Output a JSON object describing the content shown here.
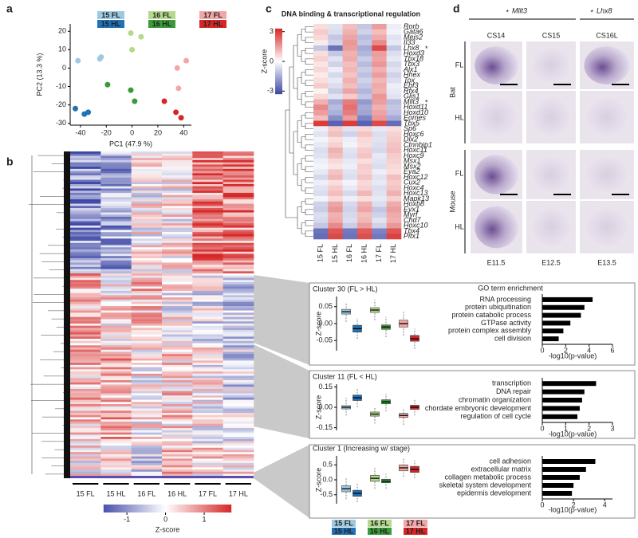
{
  "panel_labels": [
    "a",
    "b",
    "c",
    "d"
  ],
  "photo_panel": {
    "genes": [
      "Mllt3",
      "Lhx8"
    ],
    "stages": [
      "CS14",
      "CS15",
      "CS16L"
    ],
    "species": [
      "Bat",
      "Mouse"
    ],
    "limbs": [
      "FL",
      "HL"
    ],
    "mouse_stages": [
      "E11.5",
      "E12.5",
      "E13.5"
    ]
  },
  "chart_data": [
    {
      "type": "scatter",
      "x_label": "PC1 (47.9 %)",
      "y_label": "PC2 (13.3 %)",
      "xlim": [
        -48,
        46
      ],
      "ylim": [
        -31,
        24
      ],
      "xticks": [
        -40,
        -20,
        0,
        20,
        40
      ],
      "yticks": [
        -30,
        -20,
        -10,
        0,
        10,
        20
      ],
      "series": [
        {
          "name": "15 FL",
          "color": "#9ecae1",
          "x": [
            -42,
            -25,
            -24
          ],
          "values": [
            4,
            5,
            6
          ]
        },
        {
          "name": "15 HL",
          "color": "#2171b5",
          "x": [
            -44,
            -37,
            -34
          ],
          "values": [
            -22,
            -25,
            -24
          ]
        },
        {
          "name": "16 FL",
          "color": "#b5d98a",
          "x": [
            -1,
            7,
            0
          ],
          "values": [
            19,
            17,
            10
          ]
        },
        {
          "name": "16 HL",
          "color": "#3a9b3a",
          "x": [
            -19,
            -1,
            2
          ],
          "values": [
            -9,
            -12,
            -18
          ]
        },
        {
          "name": "17 FL",
          "color": "#f4a6a6",
          "x": [
            35,
            42,
            36
          ],
          "values": [
            0,
            4,
            -11
          ]
        },
        {
          "name": "17 HL",
          "color": "#d62728",
          "x": [
            25,
            34,
            38
          ],
          "values": [
            -18,
            -24,
            -27
          ]
        }
      ]
    },
    {
      "type": "heatmap",
      "title": "DNA binding & transcriptional regulation",
      "colorbar_label": "Z-score",
      "clim": [
        -3.3,
        3.3
      ],
      "colorbar_ticks": [
        -3,
        0,
        3
      ],
      "columns": [
        "15 FL",
        "15 HL",
        "16 FL",
        "16 HL",
        "17 FL",
        "17 HL"
      ],
      "rows": [
        "Rorb",
        "Gata6",
        "Meis2",
        "Il33",
        "Lhx8",
        "Hoxd3",
        "Tbx18",
        "Tbx3",
        "Alx1",
        "Hhex",
        "Tox",
        "Ebf3",
        "Rfx4",
        "Glis1",
        "Mllt3",
        "Hoxd11",
        "Hoxd10",
        "Eomes",
        "Tbx5",
        "Sp6",
        "Hoxc6",
        "Dlx2",
        "Ctnnbip1",
        "Hoxc11",
        "Hoxc9",
        "Msx1",
        "Msx2",
        "Eya2",
        "Hoxc12",
        "Cux2",
        "Hoxc4",
        "Hoxc13",
        "Mapk13",
        "Hoxb8",
        "Evx1",
        "Myrf",
        "Chd7",
        "Hoxc10",
        "Tbx4",
        "Pitx1"
      ],
      "values": [
        [
          0.5,
          -0.5,
          1,
          -1,
          1.5,
          -0.3
        ],
        [
          0.8,
          -0.6,
          1.2,
          -0.8,
          1,
          -0.2
        ],
        [
          0.6,
          -1,
          1.4,
          -1.2,
          1.3,
          -0.5
        ],
        [
          0.3,
          -0.8,
          1.6,
          -1,
          1.8,
          -0.4
        ],
        [
          -1,
          -2.5,
          1.5,
          -1.5,
          2.8,
          -1
        ],
        [
          0.5,
          -1,
          1.2,
          -1.3,
          1.5,
          -0.6
        ],
        [
          0.7,
          -0.5,
          1.3,
          -0.9,
          1.4,
          -0.4
        ],
        [
          0.4,
          -0.8,
          1,
          -1.2,
          1.6,
          -0.7
        ],
        [
          0.6,
          -0.3,
          1.1,
          -0.9,
          1.2,
          -0.5
        ],
        [
          0.3,
          -0.7,
          0.9,
          -1.1,
          1.5,
          -0.8
        ],
        [
          0.5,
          -0.4,
          1.2,
          -0.8,
          1.1,
          -0.6
        ],
        [
          0.8,
          -0.6,
          1,
          -1,
          1.3,
          -0.3
        ],
        [
          0.2,
          -0.9,
          1.4,
          -1.3,
          1.2,
          -0.4
        ],
        [
          0.6,
          -0.5,
          0.8,
          -1,
          1.6,
          -0.5
        ],
        [
          1.2,
          -1.5,
          2,
          -1.8,
          1.5,
          -1.2
        ],
        [
          1.8,
          -1.2,
          2.2,
          -1.5,
          1.2,
          -1
        ],
        [
          1.5,
          -1.4,
          2,
          -1.6,
          1.4,
          -1.1
        ],
        [
          1,
          -2,
          1.5,
          -2.2,
          1.6,
          -1.5
        ],
        [
          3,
          -2.8,
          3,
          -2.8,
          2.8,
          -2.6
        ],
        [
          -0.3,
          0.8,
          -0.5,
          0.6,
          -0.4,
          0.5
        ],
        [
          -0.5,
          1,
          -0.8,
          0.9,
          -0.6,
          0.7
        ],
        [
          -0.2,
          0.5,
          -0.3,
          0.6,
          -0.5,
          0.8
        ],
        [
          -0.4,
          0.7,
          -0.2,
          0.5,
          -0.6,
          0.9
        ],
        [
          -0.6,
          1.2,
          -0.5,
          0.8,
          -0.7,
          1
        ],
        [
          -0.5,
          1,
          -0.6,
          0.9,
          -0.4,
          0.8
        ],
        [
          -0.3,
          0.6,
          -0.4,
          0.5,
          -0.5,
          0.7
        ],
        [
          -0.2,
          0.4,
          -0.3,
          0.8,
          -0.6,
          0.6
        ],
        [
          -0.4,
          0.9,
          -0.5,
          0.7,
          -0.3,
          0.5
        ],
        [
          -0.7,
          1.1,
          -0.6,
          0.9,
          -0.5,
          1
        ],
        [
          -0.3,
          0.5,
          -0.2,
          0.6,
          -0.4,
          0.8
        ],
        [
          -0.5,
          0.8,
          -0.4,
          0.7,
          -0.6,
          0.9
        ],
        [
          -0.6,
          1,
          -0.7,
          1.1,
          -0.5,
          1.2
        ],
        [
          -0.2,
          0.6,
          -0.3,
          0.5,
          -0.4,
          0.7
        ],
        [
          -0.8,
          1.4,
          -0.7,
          1.2,
          -0.6,
          1.3
        ],
        [
          -0.9,
          1.6,
          -0.8,
          1.4,
          -1,
          1.5
        ],
        [
          -0.6,
          1.2,
          -0.7,
          1,
          -0.8,
          1.3
        ],
        [
          -0.7,
          1.3,
          -0.6,
          1.1,
          -0.5,
          1.2
        ],
        [
          -1,
          1.8,
          -0.9,
          1.5,
          -0.8,
          1.6
        ],
        [
          -2.5,
          2.6,
          -2.4,
          2.5,
          -2.2,
          2.6
        ],
        [
          -2.6,
          2.8,
          -2.5,
          2.7,
          -2.4,
          2.9
        ]
      ]
    },
    {
      "type": "heatmap",
      "colorbar_label": "Z-score",
      "clim": [
        -1.6,
        1.7
      ],
      "colorbar_ticks": [
        -1,
        0,
        1
      ],
      "columns": [
        "15 FL",
        "15 HL",
        "16 FL",
        "16 HL",
        "17 FL",
        "17 HL"
      ]
    },
    {
      "type": "box",
      "title": "Cluster 30 (FL > HL)",
      "y_label": "Z-score",
      "ylim": [
        -0.08,
        0.08
      ],
      "yticks": [
        {
          "value": -0.05,
          "label": "-0.05"
        },
        {
          "value": 0,
          "label": "0.00"
        },
        {
          "value": 0.05,
          "label": "0.05"
        }
      ],
      "colors": [
        "#9ecae1",
        "#2171b5",
        "#b5d98a",
        "#3a9b3a",
        "#f4a6a6",
        "#d62728"
      ],
      "low": [
        0.005,
        -0.045,
        0.01,
        -0.04,
        -0.035,
        -0.075
      ],
      "q1": [
        0.028,
        -0.025,
        0.033,
        -0.017,
        -0.01,
        -0.052
      ],
      "median": [
        0.035,
        -0.015,
        0.04,
        -0.01,
        0,
        -0.045
      ],
      "q3": [
        0.042,
        -0.005,
        0.047,
        -0.004,
        0.01,
        -0.035
      ],
      "high": [
        0.06,
        0.015,
        0.07,
        0.02,
        0.035,
        -0.015
      ]
    },
    {
      "type": "box",
      "title": "Cluster 11 (FL < HL)",
      "y_label": "Z-score",
      "ylim": [
        -0.17,
        0.17
      ],
      "yticks": [
        {
          "value": -0.15,
          "label": "-0.15"
        },
        {
          "value": 0,
          "label": "0.00"
        },
        {
          "value": 0.15,
          "label": "0.15"
        }
      ],
      "colors": [
        "#9ecae1",
        "#2171b5",
        "#b5d98a",
        "#3a9b3a",
        "#f4a6a6",
        "#d62728"
      ],
      "low": [
        -0.06,
        0,
        -0.12,
        -0.03,
        -0.13,
        -0.06
      ],
      "q1": [
        -0.012,
        0.05,
        -0.065,
        0.025,
        -0.075,
        -0.015
      ],
      "median": [
        0,
        0.07,
        -0.05,
        0.04,
        -0.06,
        0
      ],
      "q3": [
        0.012,
        0.09,
        -0.035,
        0.055,
        -0.045,
        0.015
      ],
      "high": [
        0.07,
        0.14,
        0,
        0.1,
        -0.01,
        0.06
      ]
    },
    {
      "type": "box",
      "title": "Cluster 1 (Increasing w/ stage)",
      "y_label": "Z-score",
      "ylim": [
        -0.8,
        0.8
      ],
      "yticks": [
        {
          "value": -0.5,
          "label": "-0.5"
        },
        {
          "value": 0,
          "label": "0.0"
        },
        {
          "value": 0.5,
          "label": "0.5"
        }
      ],
      "categories": [
        "15 FL",
        "15 HL",
        "16 FL",
        "16 HL",
        "17 FL",
        "17 HL"
      ],
      "colors": [
        "#9ecae1",
        "#2171b5",
        "#b5d98a",
        "#3a9b3a",
        "#f4a6a6",
        "#d62728"
      ],
      "low": [
        -0.65,
        -0.75,
        -0.3,
        -0.3,
        0.1,
        0.05
      ],
      "q1": [
        -0.4,
        -0.55,
        -0.05,
        -0.1,
        0.3,
        0.25
      ],
      "median": [
        -0.3,
        -0.45,
        0.05,
        -0.05,
        0.4,
        0.35
      ],
      "q3": [
        -0.2,
        -0.35,
        0.15,
        0.02,
        0.5,
        0.45
      ],
      "high": [
        0.05,
        -0.1,
        0.4,
        0.2,
        0.7,
        0.65
      ]
    },
    {
      "type": "barh",
      "title": "GO term enrichment",
      "x_label": "-log10(p-value)",
      "color": "#000000",
      "xlim": [
        0,
        6
      ],
      "xticks": [
        0,
        2,
        4,
        6
      ],
      "categories": [
        "RNA processing",
        "protein ubiquitination",
        "protein catabolic process",
        "GTPase activity",
        "protein complex assembly",
        "cell division"
      ],
      "values": [
        4.3,
        3.6,
        3.3,
        2.4,
        1.8,
        1.4
      ]
    },
    {
      "type": "barh",
      "x_label": "-log10(p-value)",
      "color": "#000000",
      "xlim": [
        0,
        3
      ],
      "xticks": [
        0,
        1,
        2,
        3
      ],
      "categories": [
        "transcription",
        "DNA repair",
        "chromatin organization",
        "chordate embryonic development",
        "regulation of cell cycle"
      ],
      "values": [
        2.3,
        1.8,
        1.7,
        1.6,
        1.5
      ]
    },
    {
      "type": "barh",
      "x_label": "-log10(p-value)",
      "color": "#000000",
      "xlim": [
        0,
        4.5
      ],
      "xticks": [
        0,
        2,
        4
      ],
      "categories": [
        "cell adhesion",
        "extracellular matrix",
        "collagen metabolic process",
        "skeletal system development",
        "epidermis development"
      ],
      "values": [
        3.4,
        2.8,
        2.4,
        2,
        1.9
      ]
    }
  ]
}
